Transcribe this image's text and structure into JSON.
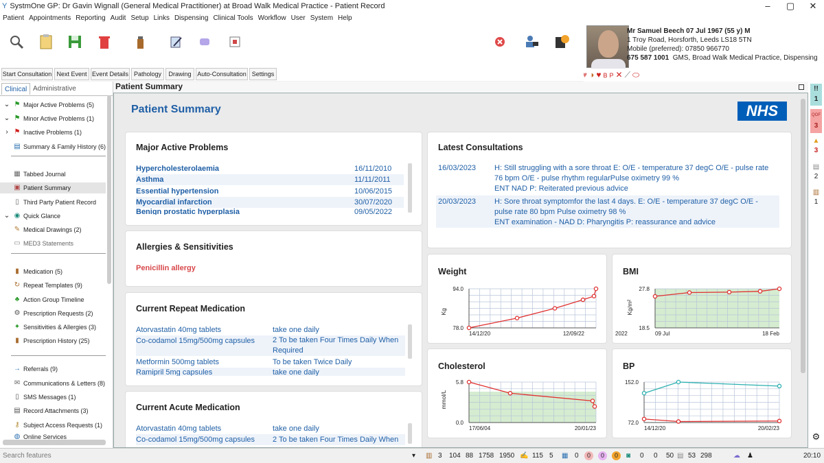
{
  "window": {
    "title": "SystmOne GP: Dr Gavin Wignall (General Medical Practitioner) at Broad Walk Medical Practice - Patient Record"
  },
  "menu": [
    "Patient",
    "Appointments",
    "Reporting",
    "Audit",
    "Setup",
    "Links",
    "Dispensing",
    "Clinical Tools",
    "Workflow",
    "User",
    "System",
    "Help"
  ],
  "buttons": [
    "Start Consultation",
    "Next Event",
    "Event Details",
    "Pathology",
    "Drawing",
    "Auto-Consultation",
    "Settings"
  ],
  "patient": {
    "name_line": "Mr Samuel Beech 07 Jul 1967 (55 y) M",
    "address": "1 Troy Road, Horsforth, Leeds LS18 5TN",
    "mobile": "Mobile (preferred): 07850 966770",
    "nhs_number": "675 587 1001",
    "practice": "GMS, Broad Walk Medical Practice, Dispensing"
  },
  "sidebar": {
    "tab_clinical": "Clinical",
    "tab_admin": "Administrative",
    "items": [
      "Major Active Problems (5)",
      "Minor Active Problems (1)",
      "Inactive Problems (1)",
      "Summary & Family History (6)",
      "Tabbed Journal",
      "Patient Summary",
      "Third Party Patient Record",
      "Quick Glance",
      "Medical Drawings (2)",
      "MED3 Statements",
      "Medication (5)",
      "Repeat Templates (9)",
      "Action Group Timeline",
      "Prescription Requests (2)",
      "Sensitivities & Allergies (3)",
      "Prescription History (25)",
      "Referrals (9)",
      "Communications & Letters (8)",
      "SMS Messages (1)",
      "Record Attachments (3)",
      "Subject Access Requests (1)",
      "Online Services"
    ]
  },
  "summary": {
    "tab_title": "Patient Summary",
    "heading": "Patient Summary",
    "nhs_logo": "NHS"
  },
  "problems": {
    "title": "Major Active Problems",
    "rows": [
      {
        "name": "Hypercholesterolaemia",
        "date": "16/11/2010"
      },
      {
        "name": "Asthma",
        "date": "11/11/2011"
      },
      {
        "name": "Essential hypertension",
        "date": "10/06/2015"
      },
      {
        "name": "Myocardial infarction",
        "date": "30/07/2020"
      },
      {
        "name": "Benign prostatic hyperplasia",
        "date": "09/05/2022"
      }
    ]
  },
  "allergies": {
    "title": "Allergies & Sensitivities",
    "items": [
      "Penicillin allergy"
    ]
  },
  "repeat_meds": {
    "title": "Current Repeat Medication",
    "rows": [
      {
        "drug": "Atorvastatin 40mg tablets",
        "dose": "take one daily"
      },
      {
        "drug": "Co-codamol 15mg/500mg capsules",
        "dose": "2 To be taken Four Times Daily When",
        "dose2": "Required"
      },
      {
        "drug": "Metformin 500mg tablets",
        "dose": "To be taken Twice Daily"
      },
      {
        "drug": "Ramipril 5mg capsules",
        "dose": "take one daily"
      }
    ]
  },
  "acute_meds": {
    "title": "Current Acute Medication",
    "rows": [
      {
        "drug": "Atorvastatin 40mg tablets",
        "dose": "take one daily"
      },
      {
        "drug": "Co-codamol 15mg/500mg capsules",
        "dose": "2 To be taken Four Times Daily When"
      }
    ]
  },
  "consultations": {
    "title": "Latest Consultations",
    "rows": [
      {
        "date": "16/03/2023",
        "lines": [
          "H: Still struggling with a sore throat E: O/E - temperature 37 degC O/E - pulse rate",
          "76 bpm O/E - pulse rhythm regularPulse oximetry 99 %",
          "ENT NAD P: Reiterated previous advice"
        ]
      },
      {
        "date": "20/03/2023",
        "lines": [
          "H: Sore throat symptomfor the last 4 days. E: O/E - temperature 37 degC O/E -",
          "pulse rate 80 bpm Pulse oximetry 98 %",
          "ENT examination - NAD D: Pharyngitis P: reassurance and advice"
        ]
      }
    ]
  },
  "chart_data": [
    {
      "type": "line",
      "title": "Weight",
      "ylabel": "Kg",
      "ylim": [
        78.0,
        94.0
      ],
      "y_ticks": [
        "94.0",
        "78.0"
      ],
      "x_ticks": [
        "14/12/20",
        "12/09/22"
      ],
      "series": [
        {
          "values": [
            78.0,
            82.0,
            86.0,
            89.5,
            91.0,
            94.0
          ]
        }
      ]
    },
    {
      "type": "line",
      "title": "BMI",
      "ylabel": "Kg/m²",
      "ylim": [
        18.5,
        27.8
      ],
      "y_ticks": [
        "27.8",
        "18.5"
      ],
      "x_ticks": [
        "2022",
        "09 Jul",
        "18 Feb"
      ],
      "series": [
        {
          "values": [
            26.0,
            26.9,
            27.0,
            27.2,
            27.8
          ]
        }
      ]
    },
    {
      "type": "line",
      "title": "Cholesterol",
      "ylabel": "mmol/L",
      "ylim": [
        0.0,
        5.8
      ],
      "y_ticks": [
        "5.8",
        "0.0"
      ],
      "x_ticks": [
        "17/06/04",
        "20/01/23"
      ],
      "series": [
        {
          "values": [
            5.8,
            4.2,
            3.1,
            2.3
          ]
        }
      ]
    },
    {
      "type": "line",
      "title": "BP",
      "ylim": [
        72.0,
        152.0
      ],
      "y_ticks": [
        "152.0",
        "72.0"
      ],
      "x_ticks": [
        "14/12/20",
        "20/02/23"
      ],
      "series": [
        {
          "values": [
            130,
            152,
            144
          ]
        },
        {
          "values": [
            79,
            74,
            75
          ]
        }
      ]
    }
  ],
  "right_badges": [
    "!!",
    "1",
    "QOF",
    "3",
    "3",
    "2",
    "1"
  ],
  "status": {
    "search_placeholder": "Search features",
    "counts": [
      "3",
      "104",
      "88",
      "1758",
      "1950",
      "115",
      "5",
      "0",
      "0",
      "0",
      "0",
      "0",
      "0",
      "50",
      "53",
      "298"
    ],
    "time": "20:10"
  }
}
